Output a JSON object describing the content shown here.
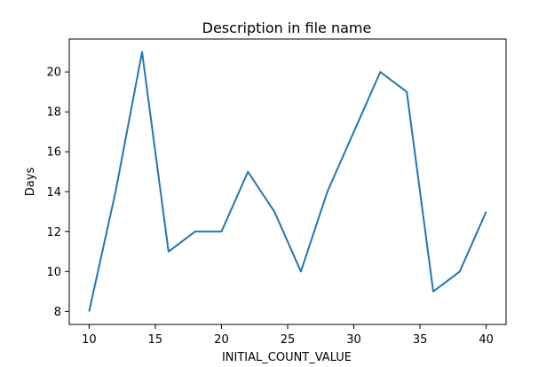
{
  "chart_data": {
    "type": "line",
    "title": "Description in file name",
    "xlabel": "INITIAL_COUNT_VALUE",
    "ylabel": "Days",
    "x": [
      10,
      12,
      14,
      16,
      18,
      20,
      22,
      24,
      26,
      28,
      30,
      32,
      34,
      36,
      38,
      40
    ],
    "series": [
      {
        "values": [
          8,
          14,
          21,
          11,
          12,
          12,
          15,
          13,
          10,
          14,
          17,
          20,
          19,
          9,
          10,
          13
        ]
      }
    ],
    "xlim": [
      8.5,
      41.5
    ],
    "ylim": [
      7.35,
      21.65
    ],
    "xticks": [
      10,
      15,
      20,
      25,
      30,
      35,
      40
    ],
    "yticks": [
      8,
      10,
      12,
      14,
      16,
      18,
      20
    ],
    "grid": false,
    "colors": {
      "line": "#1f77b4",
      "axes": "#000000"
    }
  }
}
